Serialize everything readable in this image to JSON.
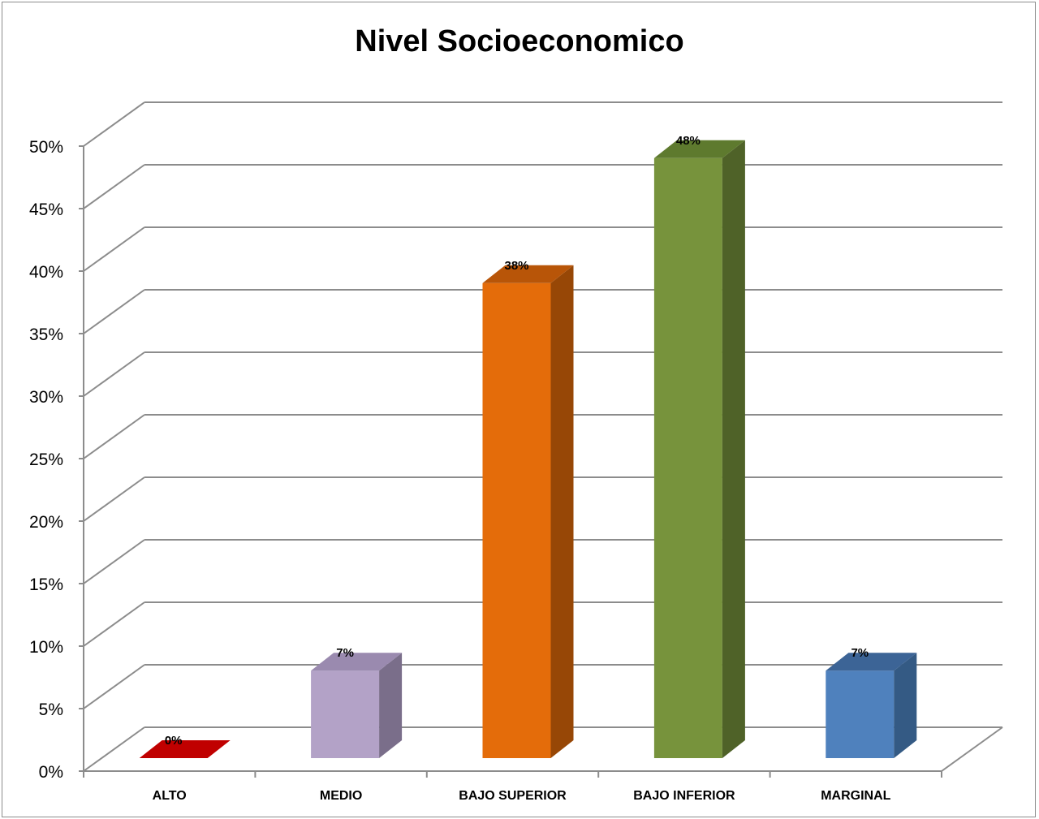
{
  "chart_data": {
    "type": "bar",
    "title": "Nivel Socioeconomico",
    "categories": [
      "ALTO",
      "MEDIO",
      "BAJO SUPERIOR",
      "BAJO INFERIOR",
      "MARGINAL"
    ],
    "values": [
      0,
      7,
      38,
      48,
      7
    ],
    "value_labels": [
      "0%",
      "7%",
      "38%",
      "48%",
      "7%"
    ],
    "colors": [
      "#C00000",
      "#B3A2C7",
      "#E46C0A",
      "#77933C",
      "#4F81BD"
    ],
    "side_colors": [
      "#8B0000",
      "#7A6E8A",
      "#974706",
      "#4F6228",
      "#345A84"
    ],
    "top_colors": [
      "#D01010",
      "#9A8AAF",
      "#B85508",
      "#5E7A2E",
      "#3C6496"
    ],
    "ylim": [
      0,
      50
    ],
    "yticks": [
      "0%",
      "5%",
      "10%",
      "15%",
      "20%",
      "25%",
      "30%",
      "35%",
      "40%",
      "45%",
      "50%"
    ],
    "ytick_step": 5,
    "xlabel": "",
    "ylabel": "",
    "grid": true,
    "legend": "none",
    "style": "3d-column"
  }
}
